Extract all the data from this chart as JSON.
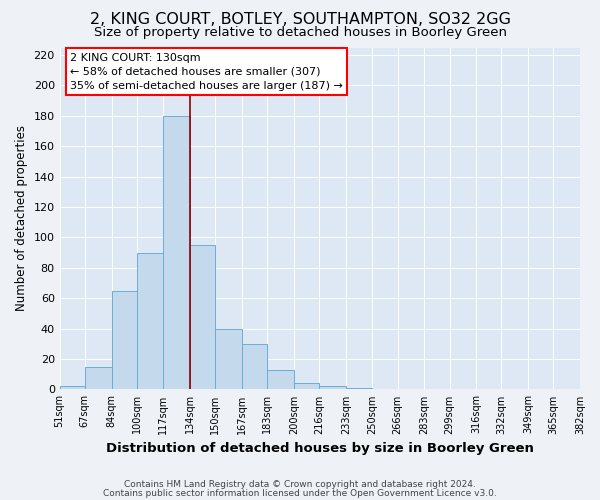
{
  "title": "2, KING COURT, BOTLEY, SOUTHAMPTON, SO32 2GG",
  "subtitle": "Size of property relative to detached houses in Boorley Green",
  "xlabel": "Distribution of detached houses by size in Boorley Green",
  "ylabel": "Number of detached properties",
  "footer_line1": "Contains HM Land Registry data © Crown copyright and database right 2024.",
  "footer_line2": "Contains public sector information licensed under the Open Government Licence v3.0.",
  "bin_edges": [
    51,
    67,
    84,
    100,
    117,
    134,
    150,
    167,
    183,
    200,
    216,
    233,
    250,
    266,
    283,
    299,
    316,
    332,
    349,
    365,
    382
  ],
  "bar_heights": [
    2,
    15,
    65,
    90,
    180,
    95,
    40,
    30,
    13,
    4,
    2,
    1,
    0,
    0,
    0,
    0,
    0,
    0,
    0,
    0
  ],
  "bar_color": "#c5d9ed",
  "bar_edge_color": "#6aaed6",
  "red_line_x": 134,
  "ylim": [
    0,
    225
  ],
  "yticks": [
    0,
    20,
    40,
    60,
    80,
    100,
    120,
    140,
    160,
    180,
    200,
    220
  ],
  "annotation_line1": "2 KING COURT: 130sqm",
  "annotation_line2": "← 58% of detached houses are smaller (307)",
  "annotation_line3": "35% of semi-detached houses are larger (187) →",
  "background_color": "#eef2f7",
  "plot_bg_color": "#dde8f4",
  "grid_color": "#ffffff",
  "title_fontsize": 11.5,
  "subtitle_fontsize": 9.5,
  "ylabel_fontsize": 8.5,
  "xlabel_fontsize": 9.5,
  "ytick_fontsize": 8,
  "xtick_fontsize": 7
}
